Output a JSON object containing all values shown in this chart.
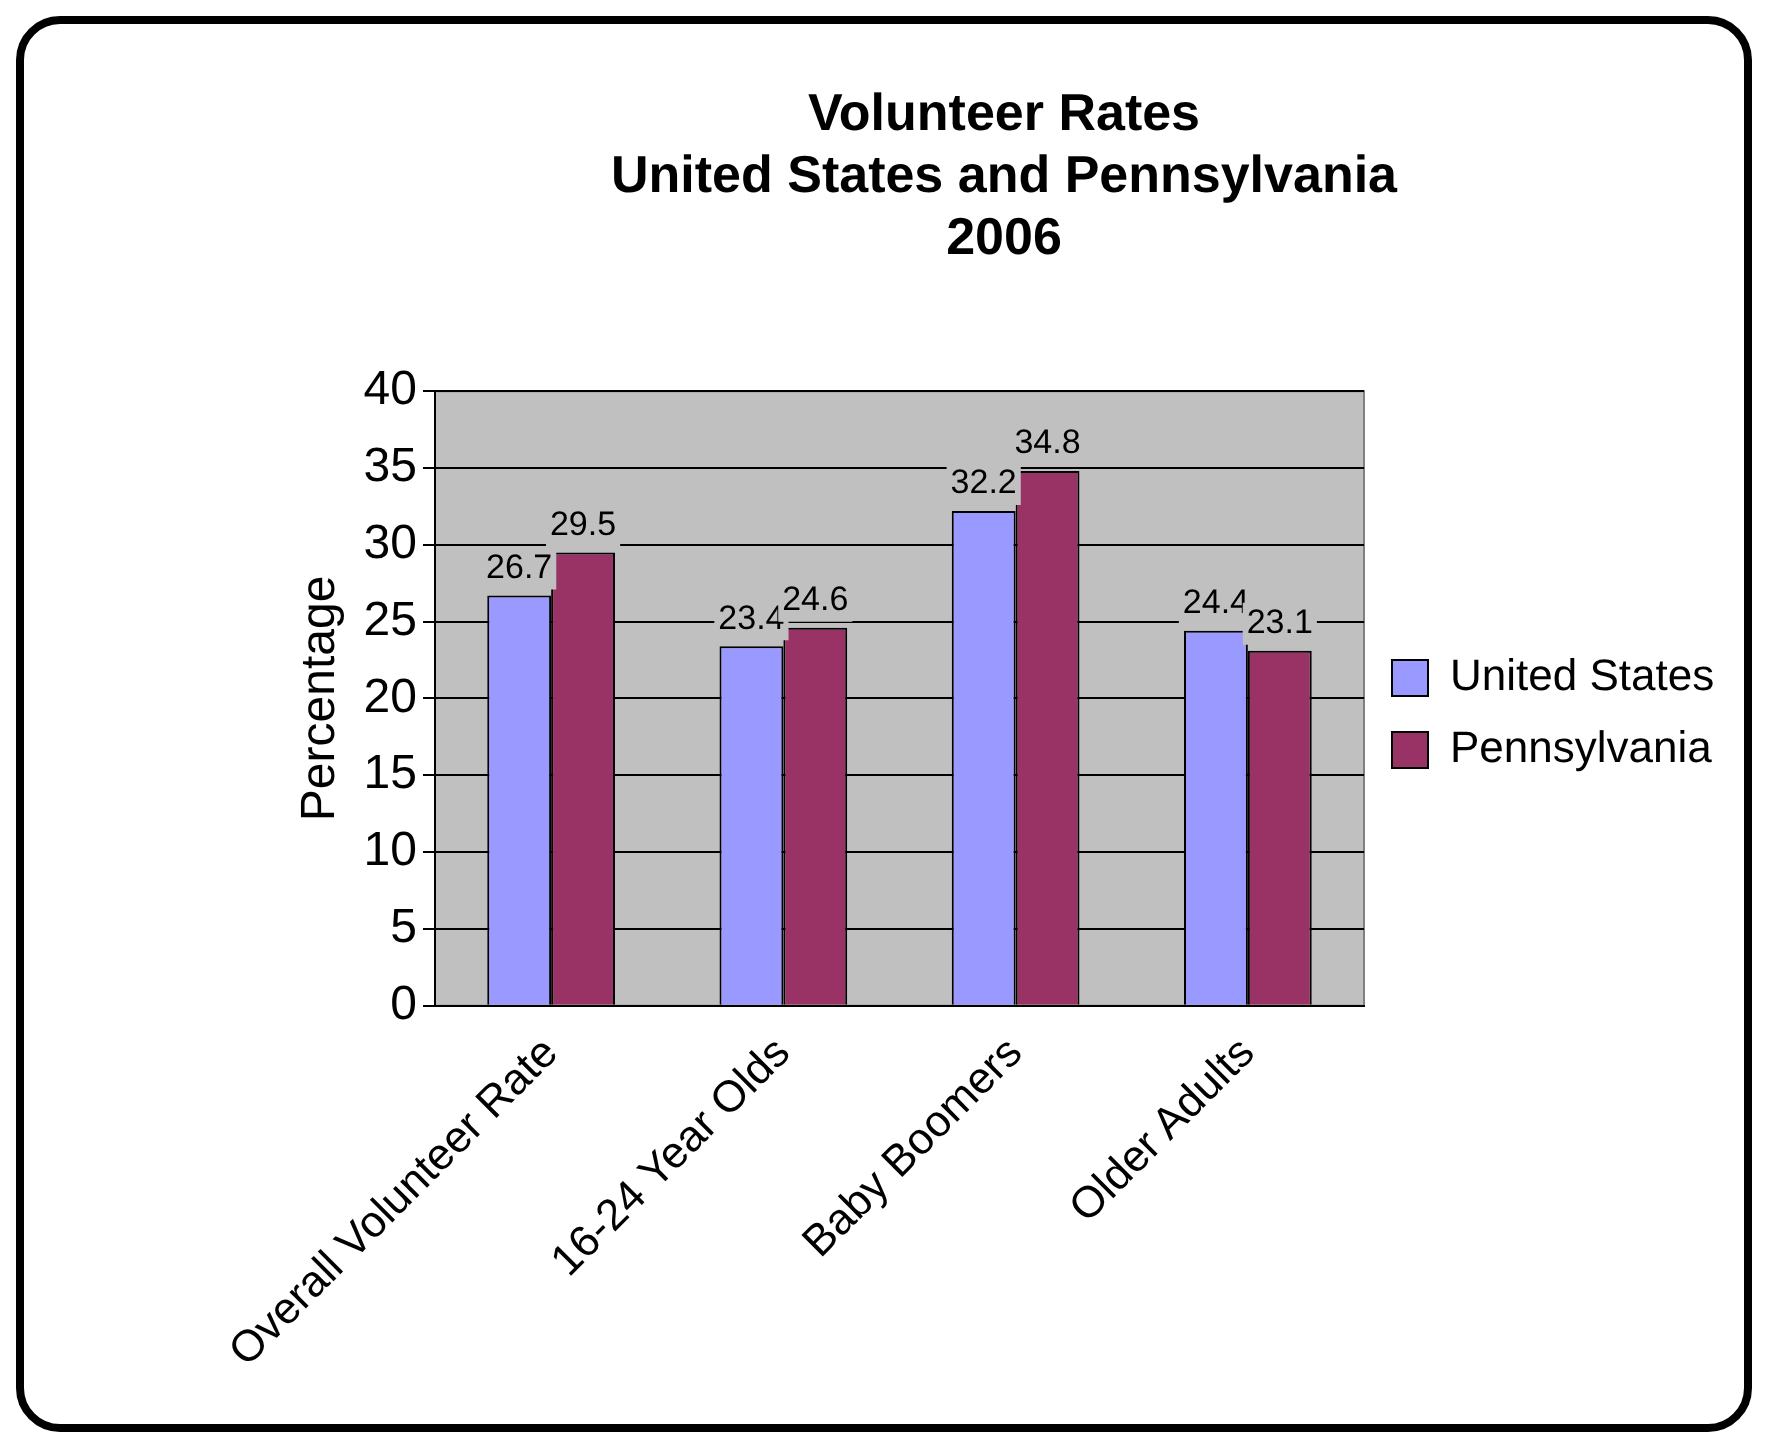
{
  "chart_data": {
    "type": "bar",
    "title": "Volunteer Rates\nUnited States and Pennsylvania\n2006",
    "ylabel": "Percentage",
    "categories": [
      "Overall Volunteer Rate",
      "16-24 Year Olds",
      "Baby Boomers",
      "Older Adults"
    ],
    "series": [
      {
        "name": "United States",
        "color": "#9999ff",
        "values": [
          26.7,
          23.4,
          32.2,
          24.4
        ]
      },
      {
        "name": "Pennsylvania",
        "color": "#993366",
        "values": [
          29.5,
          24.6,
          34.8,
          23.1
        ]
      }
    ],
    "ylim": [
      0,
      40
    ],
    "yticks": [
      0,
      5,
      10,
      15,
      20,
      25,
      30,
      35,
      40
    ],
    "grid": "y",
    "legend": "right",
    "data_labels": true
  }
}
